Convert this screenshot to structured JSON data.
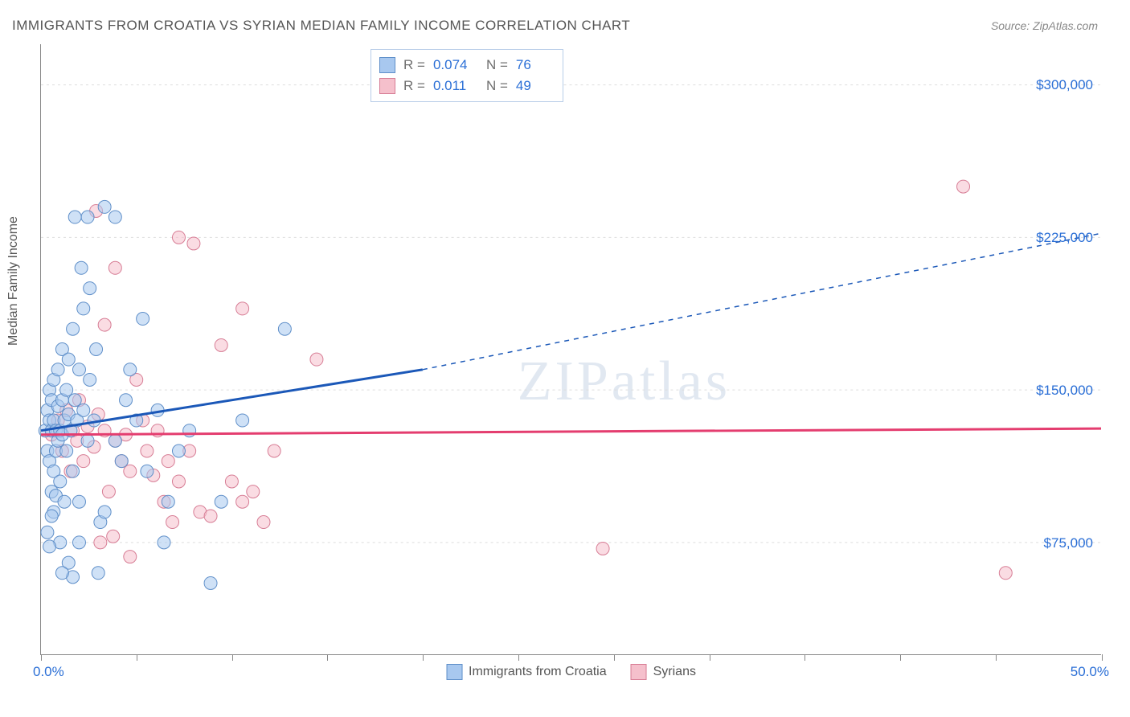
{
  "chart": {
    "title": "IMMIGRANTS FROM CROATIA VS SYRIAN MEDIAN FAMILY INCOME CORRELATION CHART",
    "source": "Source: ZipAtlas.com",
    "ylabel": "Median Family Income",
    "watermark": "ZIPatlas",
    "xlim": [
      0.0,
      50.0
    ],
    "xlim_labels": [
      "0.0%",
      "50.0%"
    ],
    "ylim": [
      20000,
      320000
    ],
    "yticks": [
      75000,
      150000,
      225000,
      300000
    ],
    "ytick_labels": [
      "$75,000",
      "$150,000",
      "$225,000",
      "$300,000"
    ],
    "xtick_positions": [
      0,
      4.5,
      9,
      13.5,
      18,
      22.5,
      27,
      31.5,
      36,
      40.5,
      45,
      50
    ],
    "background_color": "#ffffff",
    "grid_color": "#dddddd",
    "axis_color": "#888888",
    "marker_radius": 8,
    "marker_opacity": 0.55,
    "series": [
      {
        "name": "Immigrants from Croatia",
        "fill": "#a8c8ef",
        "stroke": "#5f8fc9",
        "line_color": "#1b58b8",
        "r": "0.074",
        "n": "76",
        "trend": {
          "x1": 0,
          "y1": 130000,
          "x2_solid": 18,
          "y2_solid": 160000,
          "x2": 50,
          "y2": 227000
        },
        "points": [
          [
            0.2,
            130000
          ],
          [
            0.3,
            120000
          ],
          [
            0.3,
            140000
          ],
          [
            0.4,
            135000
          ],
          [
            0.4,
            115000
          ],
          [
            0.4,
            150000
          ],
          [
            0.5,
            130000
          ],
          [
            0.5,
            100000
          ],
          [
            0.5,
            145000
          ],
          [
            0.6,
            135000
          ],
          [
            0.6,
            155000
          ],
          [
            0.6,
            110000
          ],
          [
            0.7,
            120000
          ],
          [
            0.7,
            130000
          ],
          [
            0.7,
            98000
          ],
          [
            0.8,
            142000
          ],
          [
            0.8,
            125000
          ],
          [
            0.8,
            160000
          ],
          [
            0.9,
            130000
          ],
          [
            0.9,
            105000
          ],
          [
            1.0,
            145000
          ],
          [
            1.0,
            128000
          ],
          [
            1.0,
            170000
          ],
          [
            1.1,
            135000
          ],
          [
            1.2,
            120000
          ],
          [
            1.2,
            150000
          ],
          [
            1.3,
            138000
          ],
          [
            1.3,
            165000
          ],
          [
            1.4,
            130000
          ],
          [
            1.5,
            180000
          ],
          [
            1.5,
            110000
          ],
          [
            1.6,
            145000
          ],
          [
            1.7,
            135000
          ],
          [
            1.8,
            160000
          ],
          [
            1.8,
            95000
          ],
          [
            2.0,
            140000
          ],
          [
            2.0,
            190000
          ],
          [
            2.2,
            125000
          ],
          [
            2.3,
            155000
          ],
          [
            2.5,
            135000
          ],
          [
            2.6,
            170000
          ],
          [
            2.7,
            60000
          ],
          [
            2.8,
            85000
          ],
          [
            1.3,
            65000
          ],
          [
            1.5,
            58000
          ],
          [
            2.2,
            235000
          ],
          [
            1.6,
            235000
          ],
          [
            3.0,
            240000
          ],
          [
            3.5,
            235000
          ],
          [
            1.8,
            75000
          ],
          [
            3.0,
            90000
          ],
          [
            3.5,
            125000
          ],
          [
            3.8,
            115000
          ],
          [
            4.0,
            145000
          ],
          [
            4.5,
            135000
          ],
          [
            5.0,
            110000
          ],
          [
            5.5,
            140000
          ],
          [
            4.2,
            160000
          ],
          [
            6.0,
            95000
          ],
          [
            6.5,
            120000
          ],
          [
            5.8,
            75000
          ],
          [
            8.0,
            55000
          ],
          [
            9.5,
            135000
          ],
          [
            8.5,
            95000
          ],
          [
            7.0,
            130000
          ],
          [
            4.8,
            185000
          ],
          [
            1.9,
            210000
          ],
          [
            2.3,
            200000
          ],
          [
            11.5,
            180000
          ],
          [
            0.6,
            90000
          ],
          [
            0.5,
            88000
          ],
          [
            0.3,
            80000
          ],
          [
            1.1,
            95000
          ],
          [
            0.9,
            75000
          ],
          [
            0.4,
            73000
          ],
          [
            1.0,
            60000
          ]
        ]
      },
      {
        "name": "Syrians",
        "fill": "#f5c0cc",
        "stroke": "#d77d95",
        "line_color": "#e43d6f",
        "r": "0.011",
        "n": "49",
        "trend": {
          "x1": 0,
          "y1": 128000,
          "x2_solid": 50,
          "y2_solid": 131000,
          "x2": 50,
          "y2": 131000
        },
        "points": [
          [
            0.5,
            128000
          ],
          [
            0.8,
            135000
          ],
          [
            1.0,
            120000
          ],
          [
            1.2,
            140000
          ],
          [
            1.4,
            110000
          ],
          [
            1.5,
            130000
          ],
          [
            1.7,
            125000
          ],
          [
            1.8,
            145000
          ],
          [
            2.0,
            115000
          ],
          [
            2.2,
            132000
          ],
          [
            2.5,
            122000
          ],
          [
            2.7,
            138000
          ],
          [
            3.0,
            130000
          ],
          [
            3.2,
            100000
          ],
          [
            3.5,
            125000
          ],
          [
            3.8,
            115000
          ],
          [
            4.0,
            128000
          ],
          [
            4.2,
            110000
          ],
          [
            4.5,
            155000
          ],
          [
            4.8,
            135000
          ],
          [
            5.0,
            120000
          ],
          [
            5.3,
            108000
          ],
          [
            5.5,
            130000
          ],
          [
            5.8,
            95000
          ],
          [
            6.0,
            115000
          ],
          [
            6.2,
            85000
          ],
          [
            6.5,
            105000
          ],
          [
            7.0,
            120000
          ],
          [
            7.5,
            90000
          ],
          [
            8.0,
            88000
          ],
          [
            8.5,
            172000
          ],
          [
            9.0,
            105000
          ],
          [
            9.5,
            95000
          ],
          [
            10.0,
            100000
          ],
          [
            10.5,
            85000
          ],
          [
            11.0,
            120000
          ],
          [
            3.0,
            182000
          ],
          [
            3.5,
            210000
          ],
          [
            6.5,
            225000
          ],
          [
            7.2,
            222000
          ],
          [
            9.5,
            190000
          ],
          [
            13.0,
            165000
          ],
          [
            2.8,
            75000
          ],
          [
            3.4,
            78000
          ],
          [
            4.2,
            68000
          ],
          [
            26.5,
            72000
          ],
          [
            43.5,
            250000
          ],
          [
            45.5,
            60000
          ],
          [
            2.6,
            238000
          ]
        ]
      }
    ],
    "legend_bottom": [
      {
        "swatch_fill": "#a8c8ef",
        "swatch_stroke": "#5f8fc9",
        "label": "Immigrants from Croatia"
      },
      {
        "swatch_fill": "#f5c0cc",
        "swatch_stroke": "#d77d95",
        "label": "Syrians"
      }
    ]
  },
  "r_label": "R =",
  "n_label": "N ="
}
